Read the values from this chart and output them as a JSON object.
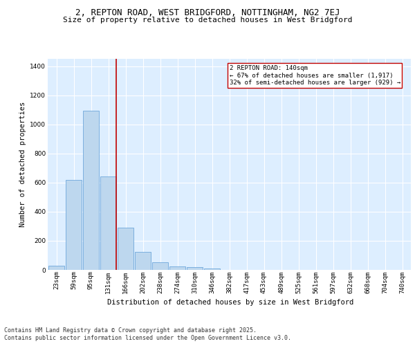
{
  "title_line1": "2, REPTON ROAD, WEST BRIDGFORD, NOTTINGHAM, NG2 7EJ",
  "title_line2": "Size of property relative to detached houses in West Bridgford",
  "xlabel": "Distribution of detached houses by size in West Bridgford",
  "ylabel": "Number of detached properties",
  "categories": [
    "23sqm",
    "59sqm",
    "95sqm",
    "131sqm",
    "166sqm",
    "202sqm",
    "238sqm",
    "274sqm",
    "310sqm",
    "346sqm",
    "382sqm",
    "417sqm",
    "453sqm",
    "489sqm",
    "525sqm",
    "561sqm",
    "597sqm",
    "632sqm",
    "668sqm",
    "704sqm",
    "740sqm"
  ],
  "values": [
    30,
    620,
    1095,
    640,
    290,
    125,
    50,
    25,
    20,
    10,
    0,
    0,
    0,
    0,
    0,
    0,
    0,
    0,
    0,
    0,
    0
  ],
  "bar_color": "#bdd7ee",
  "bar_edge_color": "#5b9bd5",
  "vline_color": "#c00000",
  "vline_pos": 3.45,
  "annotation_text": "2 REPTON ROAD: 140sqm\n← 67% of detached houses are smaller (1,917)\n32% of semi-detached houses are larger (929) →",
  "annotation_box_color": "#ffffff",
  "annotation_box_edge_color": "#c00000",
  "annotation_fontsize": 6.5,
  "ylim": [
    0,
    1450
  ],
  "yticks": [
    0,
    200,
    400,
    600,
    800,
    1000,
    1200,
    1400
  ],
  "background_color": "#ffffff",
  "plot_background": "#ddeeff",
  "grid_color": "#ffffff",
  "footer_line1": "Contains HM Land Registry data © Crown copyright and database right 2025.",
  "footer_line2": "Contains public sector information licensed under the Open Government Licence v3.0.",
  "title_fontsize": 9,
  "subtitle_fontsize": 8,
  "axis_label_fontsize": 7.5,
  "tick_fontsize": 6.5,
  "footer_fontsize": 6
}
